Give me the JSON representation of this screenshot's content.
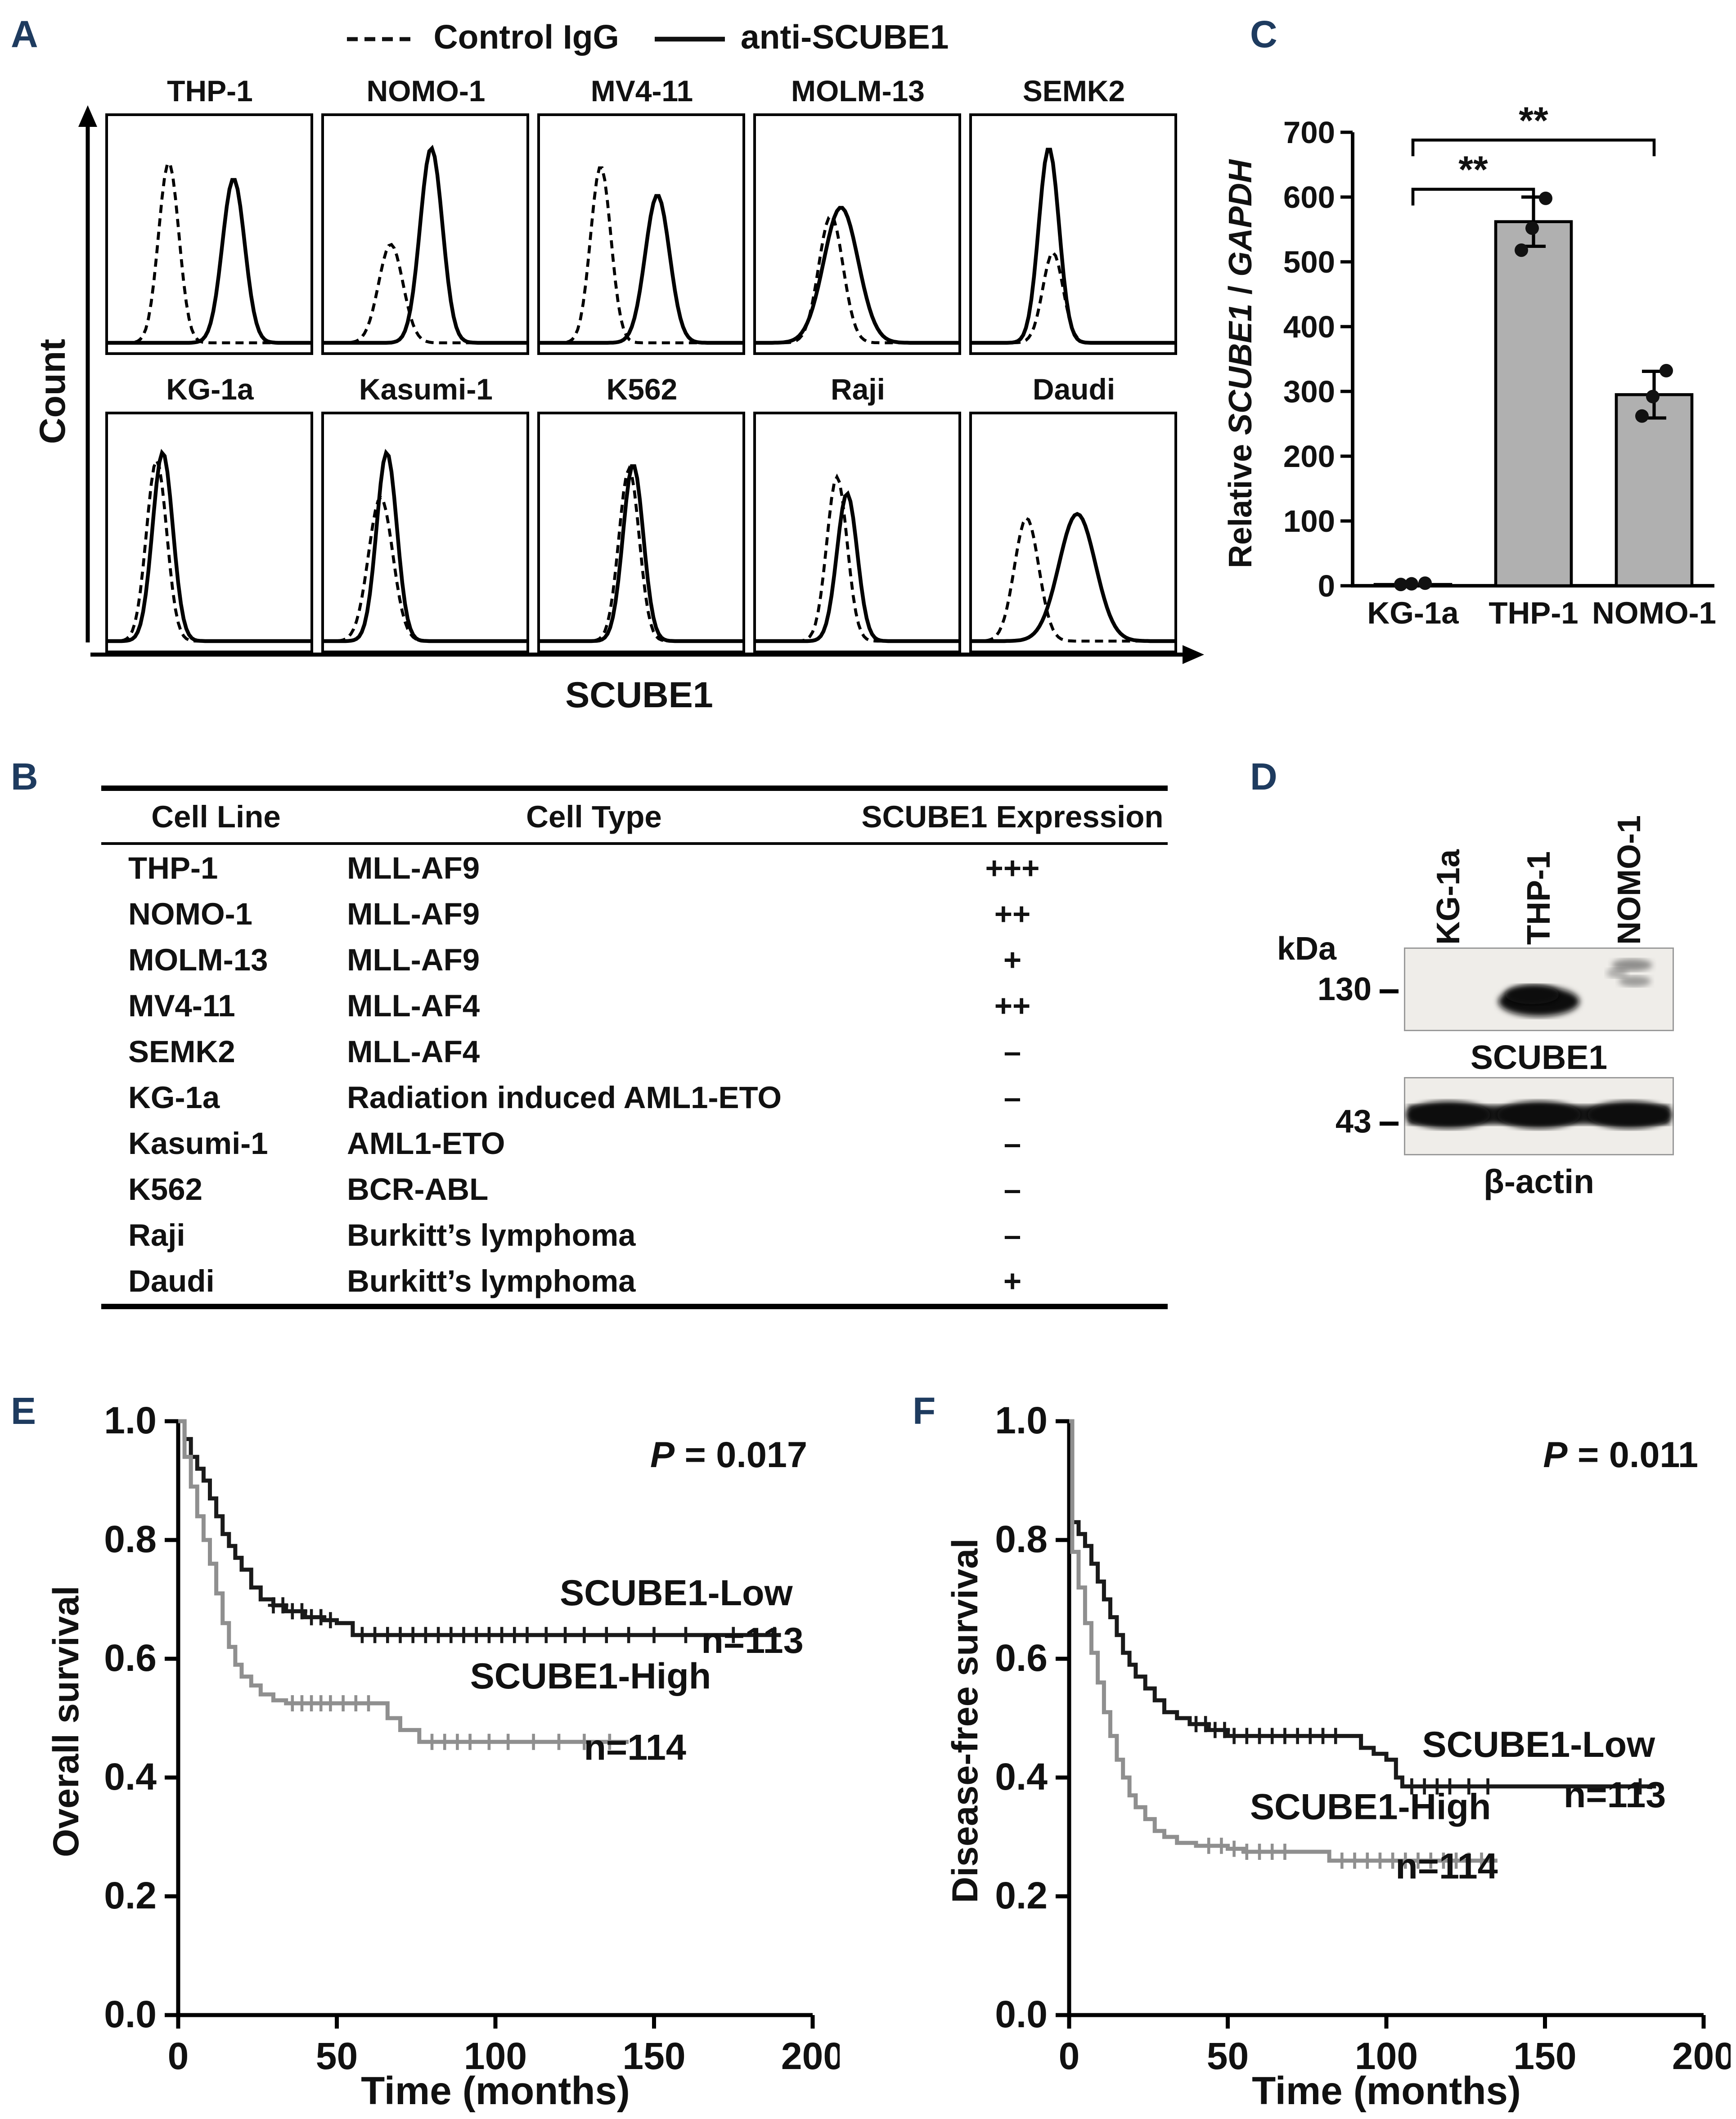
{
  "colors": {
    "panel_label": "#1e3b5f",
    "text": "#111111",
    "bar_fill": "#b0b0b0",
    "km_low": "#1a1a1a",
    "km_high": "#8f8f8f"
  },
  "panel_a": {
    "label": "A",
    "legend": {
      "dashed_label": "Control IgG",
      "solid_label": "anti-SCUBE1"
    },
    "y_axis_label": "Count",
    "x_axis_label": "SCUBE1"
  },
  "panel_b": {
    "label": "B",
    "headers": [
      "Cell Line",
      "Cell Type",
      "SCUBE1 Expression"
    ],
    "rows": [
      [
        "THP-1",
        "MLL-AF9",
        "+++"
      ],
      [
        "NOMO-1",
        "MLL-AF9",
        "++"
      ],
      [
        "MOLM-13",
        "MLL-AF9",
        "+"
      ],
      [
        "MV4-11",
        "MLL-AF4",
        "++"
      ],
      [
        "SEMK2",
        "MLL-AF4",
        "–"
      ],
      [
        "KG-1a",
        "Radiation induced AML1-ETO",
        "–"
      ],
      [
        "Kasumi-1",
        "AML1-ETO",
        "–"
      ],
      [
        "K562",
        "BCR-ABL",
        "–"
      ],
      [
        "Raji",
        "Burkitt’s lymphoma",
        "–"
      ],
      [
        "Daudi",
        "Burkitt’s lymphoma",
        "+"
      ]
    ]
  },
  "panel_c": {
    "label": "C"
  },
  "panel_d": {
    "label": "D",
    "lanes": [
      "KG-1a",
      "THP-1",
      "NOMO-1"
    ],
    "kda_label": "kDa",
    "markers": [
      "130",
      "43"
    ],
    "blots": [
      {
        "label": "SCUBE1",
        "marker": "130",
        "bands": [
          "none",
          "strong",
          "faint"
        ]
      },
      {
        "label": "β-actin",
        "marker": "43",
        "bands": [
          "strong",
          "strong",
          "strong"
        ]
      }
    ]
  },
  "panel_e": {
    "label": "E"
  },
  "panel_f": {
    "label": "F"
  },
  "chart_data": [
    {
      "id": "flow-cytometry",
      "type": "area",
      "panel": "A",
      "xlabel": "SCUBE1",
      "ylabel": "Count",
      "legend": [
        "Control IgG",
        "anti-SCUBE1"
      ],
      "cells": [
        {
          "name": "THP-1",
          "curves": [
            {
              "style": "dashed",
              "center": 0.3,
              "height": 0.88,
              "width": 0.05
            },
            {
              "style": "solid",
              "center": 0.62,
              "height": 0.8,
              "width": 0.055
            }
          ]
        },
        {
          "name": "NOMO-1",
          "curves": [
            {
              "style": "dashed",
              "center": 0.33,
              "height": 0.48,
              "width": 0.06
            },
            {
              "style": "solid",
              "center": 0.53,
              "height": 0.95,
              "width": 0.055
            }
          ]
        },
        {
          "name": "MV4-11",
          "curves": [
            {
              "style": "dashed",
              "center": 0.3,
              "height": 0.86,
              "width": 0.05
            },
            {
              "style": "solid",
              "center": 0.58,
              "height": 0.72,
              "width": 0.06
            }
          ]
        },
        {
          "name": "MOLM-13",
          "curves": [
            {
              "style": "dashed",
              "center": 0.37,
              "height": 0.62,
              "width": 0.06
            },
            {
              "style": "solid",
              "center": 0.42,
              "height": 0.66,
              "width": 0.085
            }
          ]
        },
        {
          "name": "SEMK2",
          "curves": [
            {
              "style": "dashed",
              "center": 0.4,
              "height": 0.44,
              "width": 0.05
            },
            {
              "style": "solid",
              "center": 0.38,
              "height": 0.95,
              "width": 0.05
            }
          ]
        },
        {
          "name": "KG-1a",
          "curves": [
            {
              "style": "dashed",
              "center": 0.24,
              "height": 0.88,
              "width": 0.05
            },
            {
              "style": "solid",
              "center": 0.27,
              "height": 0.92,
              "width": 0.05
            }
          ]
        },
        {
          "name": "Kasumi-1",
          "curves": [
            {
              "style": "dashed",
              "center": 0.28,
              "height": 0.7,
              "width": 0.06
            },
            {
              "style": "solid",
              "center": 0.31,
              "height": 0.92,
              "width": 0.05
            }
          ]
        },
        {
          "name": "K562",
          "curves": [
            {
              "style": "dashed",
              "center": 0.44,
              "height": 0.84,
              "width": 0.05
            },
            {
              "style": "solid",
              "center": 0.46,
              "height": 0.86,
              "width": 0.05
            }
          ]
        },
        {
          "name": "Raji",
          "curves": [
            {
              "style": "dashed",
              "center": 0.4,
              "height": 0.8,
              "width": 0.05
            },
            {
              "style": "solid",
              "center": 0.45,
              "height": 0.72,
              "width": 0.05
            }
          ]
        },
        {
          "name": "Daudi",
          "curves": [
            {
              "style": "dashed",
              "center": 0.27,
              "height": 0.6,
              "width": 0.06
            },
            {
              "style": "solid",
              "center": 0.52,
              "height": 0.62,
              "width": 0.09
            }
          ]
        }
      ]
    },
    {
      "id": "qpcr-bar",
      "type": "bar",
      "panel": "C",
      "categories": [
        "KG-1a",
        "THP-1",
        "NOMO-1"
      ],
      "values": [
        2,
        562,
        295
      ],
      "errors": [
        0,
        38,
        36
      ],
      "points": [
        [
          2,
          3,
          4
        ],
        [
          518,
          552,
          598
        ],
        [
          262,
          292,
          332
        ]
      ],
      "ylabel_plain1": "Relative ",
      "ylabel_italic1": "SCUBE1",
      "ylabel_plain2": " / ",
      "ylabel_italic2": "GAPDH",
      "ylim": [
        0,
        700
      ],
      "yticks": [
        0,
        100,
        200,
        300,
        400,
        500,
        600,
        700
      ],
      "significance": [
        {
          "from": 0,
          "to": 1,
          "y": 612,
          "label": "**"
        },
        {
          "from": 0,
          "to": 2,
          "y": 688,
          "label": "**"
        }
      ]
    },
    {
      "id": "overall-survival",
      "type": "line",
      "panel": "E",
      "p_italic": "P",
      "p_rest": " = 0.017",
      "xlabel": "Time (months)",
      "ylabel": "Overall survival",
      "xlim": [
        0,
        200
      ],
      "ylim": [
        0,
        1
      ],
      "xticks": [
        0,
        50,
        100,
        150,
        200
      ],
      "yticks": [
        0,
        0.2,
        0.4,
        0.6,
        0.8,
        1
      ],
      "series": [
        {
          "name": "SCUBE1-Low",
          "n_label": "n=113",
          "color_key": "km_low",
          "steps": [
            [
              0,
              1.0
            ],
            [
              2,
              0.97
            ],
            [
              4,
              0.94
            ],
            [
              6,
              0.92
            ],
            [
              8,
              0.9
            ],
            [
              10,
              0.87
            ],
            [
              12,
              0.84
            ],
            [
              14,
              0.81
            ],
            [
              16,
              0.79
            ],
            [
              18,
              0.77
            ],
            [
              20,
              0.75
            ],
            [
              23,
              0.72
            ],
            [
              26,
              0.7
            ],
            [
              30,
              0.69
            ],
            [
              34,
              0.68
            ],
            [
              40,
              0.67
            ],
            [
              46,
              0.665
            ],
            [
              50,
              0.66
            ],
            [
              55,
              0.64
            ],
            [
              190,
              0.64
            ]
          ],
          "censors": [
            30,
            33,
            36,
            39,
            42,
            45,
            48,
            58,
            62,
            66,
            70,
            74,
            78,
            82,
            86,
            90,
            94,
            98,
            102,
            106,
            110,
            116,
            122,
            128,
            135,
            142,
            150,
            160,
            175,
            188
          ],
          "name_pos": [
            157,
            0.69
          ],
          "n_pos": [
            181,
            0.61
          ]
        },
        {
          "name": "SCUBE1-High",
          "n_label": "n=114",
          "color_key": "km_high",
          "steps": [
            [
              0,
              1.0
            ],
            [
              2,
              0.94
            ],
            [
              4,
              0.89
            ],
            [
              6,
              0.84
            ],
            [
              8,
              0.8
            ],
            [
              10,
              0.76
            ],
            [
              12,
              0.71
            ],
            [
              14,
              0.66
            ],
            [
              16,
              0.62
            ],
            [
              18,
              0.59
            ],
            [
              20,
              0.57
            ],
            [
              23,
              0.555
            ],
            [
              26,
              0.54
            ],
            [
              30,
              0.53
            ],
            [
              34,
              0.525
            ],
            [
              62,
              0.525
            ],
            [
              66,
              0.5
            ],
            [
              70,
              0.48
            ],
            [
              76,
              0.46
            ],
            [
              142,
              0.46
            ]
          ],
          "censors": [
            36,
            39,
            42,
            45,
            48,
            52,
            56,
            60,
            80,
            84,
            88,
            92,
            98,
            104,
            112,
            120,
            128,
            136
          ],
          "name_pos": [
            130,
            0.55
          ],
          "n_pos": [
            144,
            0.43
          ]
        }
      ]
    },
    {
      "id": "disease-free-survival",
      "type": "line",
      "panel": "F",
      "p_italic": "P",
      "p_rest": " = 0.011",
      "xlabel": "Time (months)",
      "ylabel": "Disease-free survival",
      "xlim": [
        0,
        200
      ],
      "ylim": [
        0,
        1
      ],
      "xticks": [
        0,
        50,
        100,
        150,
        200
      ],
      "yticks": [
        0,
        0.2,
        0.4,
        0.6,
        0.8,
        1
      ],
      "series": [
        {
          "name": "SCUBE1-Low",
          "n_label": "n=113",
          "color_key": "km_low",
          "steps": [
            [
              0,
              1.0
            ],
            [
              1,
              0.83
            ],
            [
              3,
              0.81
            ],
            [
              5,
              0.79
            ],
            [
              7,
              0.76
            ],
            [
              9,
              0.73
            ],
            [
              11,
              0.7
            ],
            [
              13,
              0.67
            ],
            [
              15,
              0.64
            ],
            [
              17,
              0.61
            ],
            [
              19,
              0.59
            ],
            [
              21,
              0.57
            ],
            [
              24,
              0.55
            ],
            [
              27,
              0.53
            ],
            [
              30,
              0.51
            ],
            [
              34,
              0.5
            ],
            [
              38,
              0.49
            ],
            [
              44,
              0.48
            ],
            [
              50,
              0.47
            ],
            [
              88,
              0.47
            ],
            [
              92,
              0.45
            ],
            [
              96,
              0.44
            ],
            [
              100,
              0.43
            ],
            [
              103,
              0.4
            ],
            [
              105,
              0.385
            ],
            [
              185,
              0.385
            ]
          ],
          "censors": [
            40,
            43,
            46,
            49,
            52,
            56,
            60,
            64,
            68,
            72,
            76,
            80,
            84,
            108,
            112,
            116,
            120,
            126,
            132,
            180
          ],
          "name_pos": [
            148,
            0.435
          ],
          "n_pos": [
            172,
            0.35
          ]
        },
        {
          "name": "SCUBE1-High",
          "n_label": "n=114",
          "color_key": "km_high",
          "steps": [
            [
              0,
              1.0
            ],
            [
              1,
              0.78
            ],
            [
              3,
              0.72
            ],
            [
              5,
              0.66
            ],
            [
              7,
              0.61
            ],
            [
              9,
              0.56
            ],
            [
              11,
              0.51
            ],
            [
              13,
              0.47
            ],
            [
              15,
              0.43
            ],
            [
              17,
              0.4
            ],
            [
              19,
              0.37
            ],
            [
              21,
              0.35
            ],
            [
              24,
              0.33
            ],
            [
              27,
              0.31
            ],
            [
              30,
              0.3
            ],
            [
              34,
              0.29
            ],
            [
              40,
              0.285
            ],
            [
              50,
              0.28
            ],
            [
              55,
              0.275
            ],
            [
              78,
              0.275
            ],
            [
              82,
              0.26
            ],
            [
              135,
              0.26
            ]
          ],
          "censors": [
            44,
            48,
            52,
            56,
            60,
            64,
            68,
            86,
            90,
            94,
            98,
            102,
            106,
            110,
            114,
            118,
            122,
            126,
            130
          ],
          "name_pos": [
            95,
            0.33
          ],
          "n_pos": [
            119,
            0.23
          ]
        }
      ]
    }
  ]
}
